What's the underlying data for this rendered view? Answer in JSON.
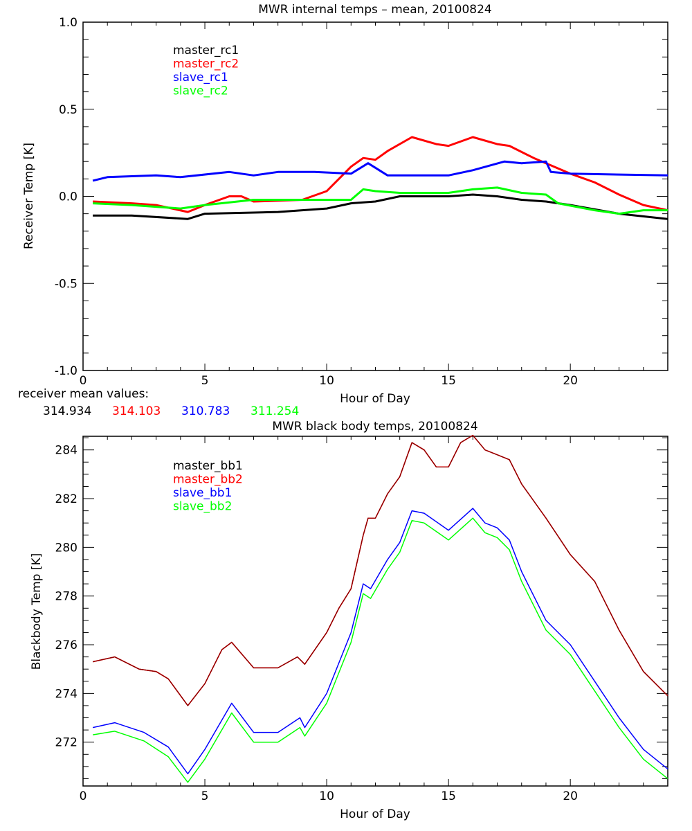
{
  "chart_data": [
    {
      "type": "line",
      "title": "MWR internal temps – mean, 20100824",
      "xlabel": "Hour of Day",
      "ylabel": "Receiver Temp [K]",
      "xlim": [
        0,
        24
      ],
      "ylim": [
        -1.0,
        1.0
      ],
      "xticks": [
        "0",
        "5",
        "10",
        "15",
        "20"
      ],
      "yticks": [
        "-1.0",
        "-0.5",
        "0.0",
        "0.5",
        "1.0"
      ],
      "grid": false,
      "legend_position": "top-left",
      "series": [
        {
          "name": "master_rc1",
          "color": "#000000",
          "x": [
            0.4,
            2,
            4.3,
            5,
            8,
            10,
            11,
            12,
            13,
            15,
            16,
            17,
            18,
            19,
            20,
            22,
            24
          ],
          "y": [
            -0.11,
            -0.11,
            -0.13,
            -0.1,
            -0.09,
            -0.07,
            -0.04,
            -0.03,
            0.0,
            0.0,
            0.01,
            0.0,
            -0.02,
            -0.03,
            -0.05,
            -0.1,
            -0.13
          ]
        },
        {
          "name": "master_rc2",
          "color": "#ff0000",
          "x": [
            0.4,
            2,
            3,
            4.3,
            5,
            6,
            6.5,
            7,
            9,
            10,
            11,
            11.5,
            12,
            12.5,
            13.5,
            14.5,
            15,
            16,
            17,
            17.5,
            18.5,
            19,
            20,
            21,
            22,
            23,
            24
          ],
          "y": [
            -0.03,
            -0.04,
            -0.05,
            -0.09,
            -0.05,
            0.0,
            0.0,
            -0.03,
            -0.02,
            0.03,
            0.17,
            0.22,
            0.21,
            0.26,
            0.34,
            0.3,
            0.29,
            0.34,
            0.3,
            0.29,
            0.22,
            0.19,
            0.13,
            0.08,
            0.01,
            -0.05,
            -0.08
          ]
        },
        {
          "name": "slave_rc1",
          "color": "#0000ff",
          "x": [
            0.4,
            1,
            3,
            4,
            6,
            7,
            8,
            9.5,
            11,
            11.7,
            12.5,
            14,
            15,
            16,
            17.3,
            18,
            19,
            19.2,
            20,
            24
          ],
          "y": [
            0.09,
            0.11,
            0.12,
            0.11,
            0.14,
            0.12,
            0.14,
            0.14,
            0.13,
            0.19,
            0.12,
            0.12,
            0.12,
            0.15,
            0.2,
            0.19,
            0.2,
            0.14,
            0.13,
            0.12
          ]
        },
        {
          "name": "slave_rc2",
          "color": "#00ff00",
          "x": [
            0.4,
            2,
            4,
            5,
            7,
            10,
            11,
            11.5,
            12,
            13,
            15,
            16,
            17,
            18,
            19,
            19.5,
            21,
            22,
            23,
            24
          ],
          "y": [
            -0.04,
            -0.05,
            -0.07,
            -0.05,
            -0.02,
            -0.02,
            -0.02,
            0.04,
            0.03,
            0.02,
            0.02,
            0.04,
            0.05,
            0.02,
            0.01,
            -0.04,
            -0.08,
            -0.1,
            -0.08,
            -0.08
          ]
        }
      ],
      "annotation_label": "receiver mean values:",
      "mean_values": [
        {
          "value": "314.934",
          "color": "#000000"
        },
        {
          "value": "314.103",
          "color": "#ff0000"
        },
        {
          "value": "310.783",
          "color": "#0000ff"
        },
        {
          "value": "311.254",
          "color": "#00ff00"
        }
      ]
    },
    {
      "type": "line",
      "title": "MWR black body temps, 20100824",
      "xlabel": "Hour of Day",
      "ylabel": "Blackbody Temp [K]",
      "xlim": [
        0,
        24
      ],
      "ylim": [
        270.2,
        284.56
      ],
      "xticks": [
        "0",
        "5",
        "10",
        "15",
        "20"
      ],
      "yticks": [
        "272",
        "274",
        "276",
        "278",
        "280",
        "282",
        "284"
      ],
      "grid": false,
      "legend_position": "top-left",
      "series": [
        {
          "name": "master_bb1",
          "color": "#000000",
          "x": [
            0.4,
            1.3,
            2.3,
            3,
            3.5,
            4.3,
            5,
            5.7,
            6.1,
            7,
            8,
            8.8,
            9.1,
            10,
            10.5,
            11,
            11.5,
            11.7,
            12,
            12.5,
            13,
            13.5,
            14,
            14.5,
            15,
            15.5,
            16,
            16.5,
            17,
            17.5,
            18,
            19,
            20,
            21,
            22,
            23,
            24
          ],
          "y": [
            275.3,
            275.5,
            275.0,
            274.9,
            274.6,
            273.5,
            274.4,
            275.8,
            276.1,
            275.05,
            275.05,
            275.5,
            275.2,
            276.5,
            277.5,
            278.3,
            280.5,
            281.2,
            281.2,
            282.2,
            282.9,
            284.3,
            284.0,
            283.3,
            283.3,
            284.3,
            284.6,
            284.0,
            283.8,
            283.6,
            282.6,
            281.2,
            279.7,
            278.6,
            276.6,
            274.9,
            273.9
          ]
        },
        {
          "name": "master_bb2",
          "color": "#ff0000",
          "x": [
            0.4,
            1.3,
            2.3,
            3,
            3.5,
            4.3,
            5,
            5.7,
            6.1,
            7,
            8,
            8.8,
            9.1,
            10,
            10.5,
            11,
            11.5,
            11.7,
            12,
            12.5,
            13,
            13.5,
            14,
            14.5,
            15,
            15.5,
            16,
            16.5,
            17,
            17.5,
            18,
            19,
            20,
            21,
            22,
            23,
            24
          ],
          "y": [
            275.3,
            275.5,
            275.0,
            274.9,
            274.6,
            273.5,
            274.4,
            275.8,
            276.1,
            275.05,
            275.05,
            275.5,
            275.2,
            276.5,
            277.5,
            278.3,
            280.5,
            281.2,
            281.2,
            282.2,
            282.9,
            284.3,
            284.0,
            283.3,
            283.3,
            284.3,
            284.6,
            284.0,
            283.8,
            283.6,
            282.6,
            281.2,
            279.7,
            278.6,
            276.6,
            274.9,
            273.9
          ]
        },
        {
          "name": "slave_bb1",
          "color": "#0000ff",
          "x": [
            0.4,
            1.3,
            2.5,
            3.5,
            4.3,
            5,
            6.1,
            7,
            8,
            8.9,
            9.1,
            10,
            11,
            11.5,
            11.8,
            12.5,
            13,
            13.5,
            14,
            15,
            16,
            16.5,
            17,
            17.5,
            18,
            19,
            20,
            21,
            22,
            23,
            24
          ],
          "y": [
            272.6,
            272.8,
            272.4,
            271.8,
            270.7,
            271.7,
            273.6,
            272.4,
            272.4,
            273.0,
            272.6,
            274.0,
            276.5,
            278.5,
            278.3,
            279.5,
            280.2,
            281.5,
            281.4,
            280.7,
            281.6,
            281.0,
            280.8,
            280.3,
            279.0,
            277.0,
            276.0,
            274.5,
            273.0,
            271.7,
            270.9
          ]
        },
        {
          "name": "slave_bb2",
          "color": "#00ff00",
          "x": [
            0.4,
            1.3,
            2.5,
            3.5,
            4.3,
            5,
            6.1,
            7,
            8,
            8.9,
            9.1,
            10,
            11,
            11.5,
            11.8,
            12.5,
            13,
            13.5,
            14,
            15,
            16,
            16.5,
            17,
            17.5,
            18,
            19,
            20,
            21,
            22,
            23,
            24
          ],
          "y": [
            272.3,
            272.45,
            272.05,
            271.4,
            270.35,
            271.3,
            273.2,
            272.0,
            272.0,
            272.6,
            272.25,
            273.6,
            276.1,
            278.1,
            277.9,
            279.1,
            279.8,
            281.1,
            281.0,
            280.3,
            281.2,
            280.6,
            280.4,
            279.9,
            278.6,
            276.6,
            275.6,
            274.1,
            272.6,
            271.3,
            270.5
          ]
        }
      ]
    }
  ]
}
